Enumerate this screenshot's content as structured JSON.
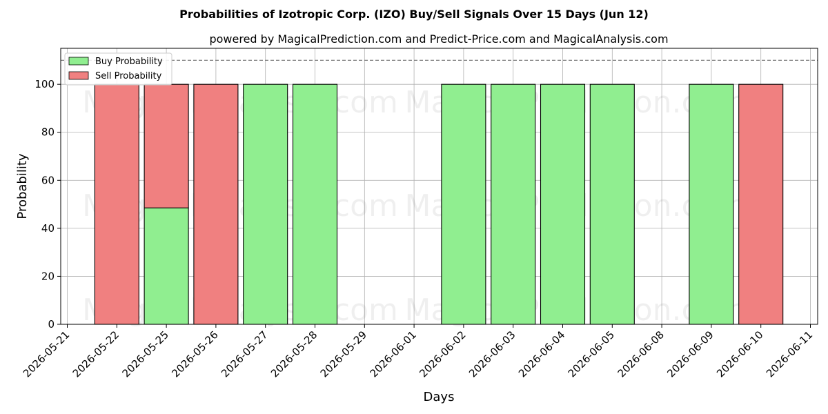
{
  "chart_data": {
    "type": "bar",
    "stacked": true,
    "title": "Probabilities of Izotropic Corp. (IZO) Buy/Sell Signals Over 15 Days (Jun 12)",
    "subtitle": "powered by MagicalPrediction.com and Predict-Price.com and MagicalAnalysis.com",
    "xlabel": "Days",
    "ylabel": "Probability",
    "ylim": [
      0,
      115
    ],
    "yticks": [
      0,
      20,
      40,
      60,
      80,
      100
    ],
    "reference_line": 110,
    "x_ticks": [
      "2026-05-21",
      "2026-05-22",
      "2026-05-25",
      "2026-05-26",
      "2026-05-27",
      "2026-05-28",
      "2026-05-29",
      "2026-06-01",
      "2026-06-02",
      "2026-06-03",
      "2026-06-04",
      "2026-06-05",
      "2026-06-08",
      "2026-06-09",
      "2026-06-10",
      "2026-06-11"
    ],
    "categories": [
      "2026-05-22",
      "2026-05-25",
      "2026-05-26",
      "2026-05-27",
      "2026-05-28",
      "2026-06-02",
      "2026-06-03",
      "2026-06-04",
      "2026-06-05",
      "2026-06-09",
      "2026-06-10"
    ],
    "series": [
      {
        "name": "Buy Probability",
        "color": "#90ee90",
        "values": [
          0,
          48.5,
          0,
          100,
          100,
          100,
          100,
          100,
          100,
          100,
          0
        ]
      },
      {
        "name": "Sell Probability",
        "color": "#f08080",
        "values": [
          100,
          51.5,
          100,
          0,
          0,
          0,
          0,
          0,
          0,
          0,
          100
        ]
      }
    ],
    "grid": true,
    "legend_position": "top-left",
    "watermarks": [
      "MagicalAnalysis.com",
      "MagicalPrediction.com"
    ]
  }
}
